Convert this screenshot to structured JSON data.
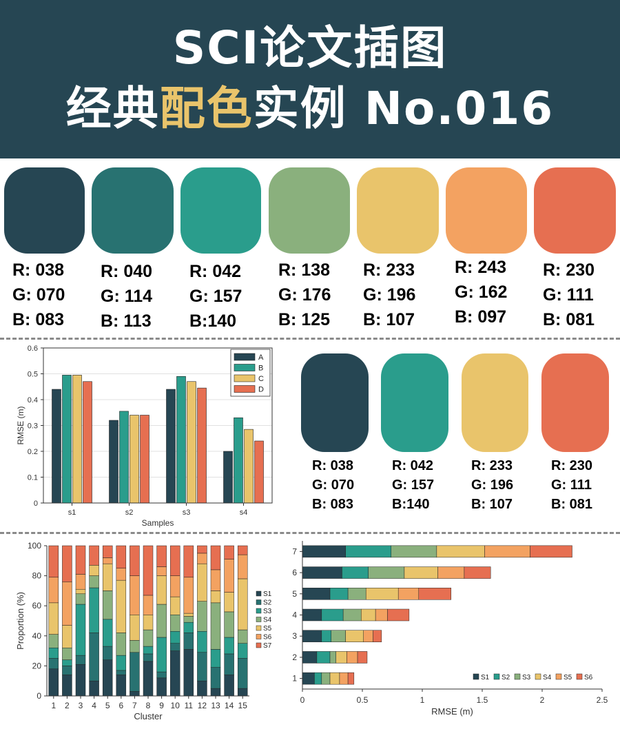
{
  "header": {
    "title_line1": "SCI论文插图",
    "title_line2_pre": "经典",
    "title_line2_hl": "配色",
    "title_line2_post": "实例 No.016"
  },
  "palette7": [
    {
      "color": "#264653",
      "r": "R: 038",
      "g": "G: 070",
      "b": "B: 083"
    },
    {
      "color": "#287271",
      "r": "R: 040",
      "g": "G: 114",
      "b": "B: 113"
    },
    {
      "color": "#2a9d8c",
      "r": "R: 042",
      "g": "G: 157",
      "b": "B:140"
    },
    {
      "color": "#8ab07d",
      "r": "R: 138",
      "g": "G: 176",
      "b": "B: 125"
    },
    {
      "color": "#e9c46b",
      "r": "R: 233",
      "g": "G: 196",
      "b": "B: 107"
    },
    {
      "color": "#f3a261",
      "r": "R: 243",
      "g": "G: 162",
      "b": "B: 097"
    },
    {
      "color": "#e66f51",
      "r": "R: 230",
      "g": "G: 111",
      "b": "B: 081"
    }
  ],
  "palette4": [
    {
      "color": "#264653",
      "r": "R: 038",
      "g": "G: 070",
      "b": "B: 083"
    },
    {
      "color": "#2a9d8c",
      "r": "R: 042",
      "g": "G: 157",
      "b": "B:140"
    },
    {
      "color": "#e9c46b",
      "r": "R: 233",
      "g": "G: 196",
      "b": "B: 107"
    },
    {
      "color": "#e66f51",
      "r": "R: 230",
      "g": "G: 111",
      "b": "B: 081"
    }
  ],
  "chart_data": [
    {
      "type": "bar",
      "title": "",
      "xlabel": "Samples",
      "ylabel": "RMSE (m)",
      "ylim": [
        0,
        0.6
      ],
      "yticks": [
        "0",
        "0.1",
        "0.2",
        "0.3",
        "0.4",
        "0.5",
        "0.6"
      ],
      "categories": [
        "s1",
        "s2",
        "s3",
        "s4"
      ],
      "legend_position": "top-right",
      "grid": true,
      "series": [
        {
          "name": "A",
          "color": "#264653",
          "values": [
            0.44,
            0.32,
            0.44,
            0.2
          ]
        },
        {
          "name": "B",
          "color": "#2a9d8c",
          "values": [
            0.495,
            0.355,
            0.49,
            0.33
          ]
        },
        {
          "name": "C",
          "color": "#e9c46b",
          "values": [
            0.495,
            0.34,
            0.47,
            0.285
          ]
        },
        {
          "name": "D",
          "color": "#e66f51",
          "values": [
            0.47,
            0.34,
            0.445,
            0.24
          ]
        }
      ]
    },
    {
      "type": "bar",
      "stacked": true,
      "title": "",
      "xlabel": "Cluster",
      "ylabel": "Proportion (%)",
      "ylim": [
        0,
        100
      ],
      "yticks": [
        "0",
        "20",
        "40",
        "60",
        "80",
        "100"
      ],
      "categories": [
        "1",
        "2",
        "3",
        "4",
        "5",
        "6",
        "7",
        "8",
        "9",
        "10",
        "11",
        "12",
        "13",
        "14",
        "15"
      ],
      "legend_position": "right",
      "grid": false,
      "series": [
        {
          "name": "S1",
          "color": "#264653",
          "values": [
            18,
            14,
            21,
            10,
            24,
            14,
            3,
            23,
            12,
            30,
            31,
            10,
            5,
            14,
            5
          ]
        },
        {
          "name": "S2",
          "color": "#287271",
          "values": [
            7,
            6,
            6,
            32,
            9,
            3,
            26,
            5,
            4,
            5,
            11,
            19,
            14,
            14,
            20
          ]
        },
        {
          "name": "S3",
          "color": "#2a9d8c",
          "values": [
            7,
            4,
            34,
            30,
            18,
            10,
            0,
            5,
            23,
            8,
            7,
            14,
            12,
            11,
            10
          ]
        },
        {
          "name": "S4",
          "color": "#8ab07d",
          "values": [
            9,
            8,
            7,
            8,
            19,
            15,
            8,
            11,
            22,
            11,
            4,
            20,
            31,
            17,
            9
          ]
        },
        {
          "name": "S5",
          "color": "#e9c46b",
          "values": [
            21,
            15,
            3,
            7,
            18,
            35,
            17,
            10,
            19,
            12,
            2,
            25,
            8,
            13,
            34
          ]
        },
        {
          "name": "S6",
          "color": "#f3a261",
          "values": [
            17,
            29,
            10,
            0,
            4,
            8,
            26,
            13,
            6,
            14,
            24,
            7,
            14,
            22,
            16
          ]
        },
        {
          "name": "S7",
          "color": "#e66f51",
          "values": [
            21,
            24,
            19,
            13,
            8,
            15,
            20,
            33,
            14,
            20,
            21,
            5,
            16,
            9,
            6
          ]
        }
      ]
    },
    {
      "type": "bar",
      "orientation": "horizontal",
      "stacked": true,
      "title": "",
      "xlabel": "RMSE (m)",
      "ylabel": "",
      "xlim": [
        0,
        2.5
      ],
      "xticks": [
        "0",
        "0.5",
        "1",
        "1.5",
        "2",
        "2.5"
      ],
      "categories": [
        "1",
        "2",
        "3",
        "4",
        "5",
        "6",
        "7"
      ],
      "legend_position": "bottom-right",
      "grid": false,
      "series": [
        {
          "name": "S1",
          "color": "#264653",
          "values": [
            0.1,
            0.12,
            0.16,
            0.16,
            0.23,
            0.33,
            0.36
          ]
        },
        {
          "name": "S2",
          "color": "#2a9d8c",
          "values": [
            0.06,
            0.11,
            0.08,
            0.18,
            0.15,
            0.22,
            0.38
          ]
        },
        {
          "name": "S3",
          "color": "#8ab07d",
          "values": [
            0.07,
            0.05,
            0.12,
            0.15,
            0.15,
            0.3,
            0.38
          ]
        },
        {
          "name": "S4",
          "color": "#e9c46b",
          "values": [
            0.08,
            0.09,
            0.15,
            0.12,
            0.27,
            0.28,
            0.4
          ]
        },
        {
          "name": "S5",
          "color": "#f3a261",
          "values": [
            0.07,
            0.09,
            0.08,
            0.1,
            0.17,
            0.22,
            0.38
          ]
        },
        {
          "name": "S6",
          "color": "#e66f51",
          "values": [
            0.05,
            0.08,
            0.07,
            0.18,
            0.27,
            0.22,
            0.35
          ]
        }
      ]
    }
  ]
}
